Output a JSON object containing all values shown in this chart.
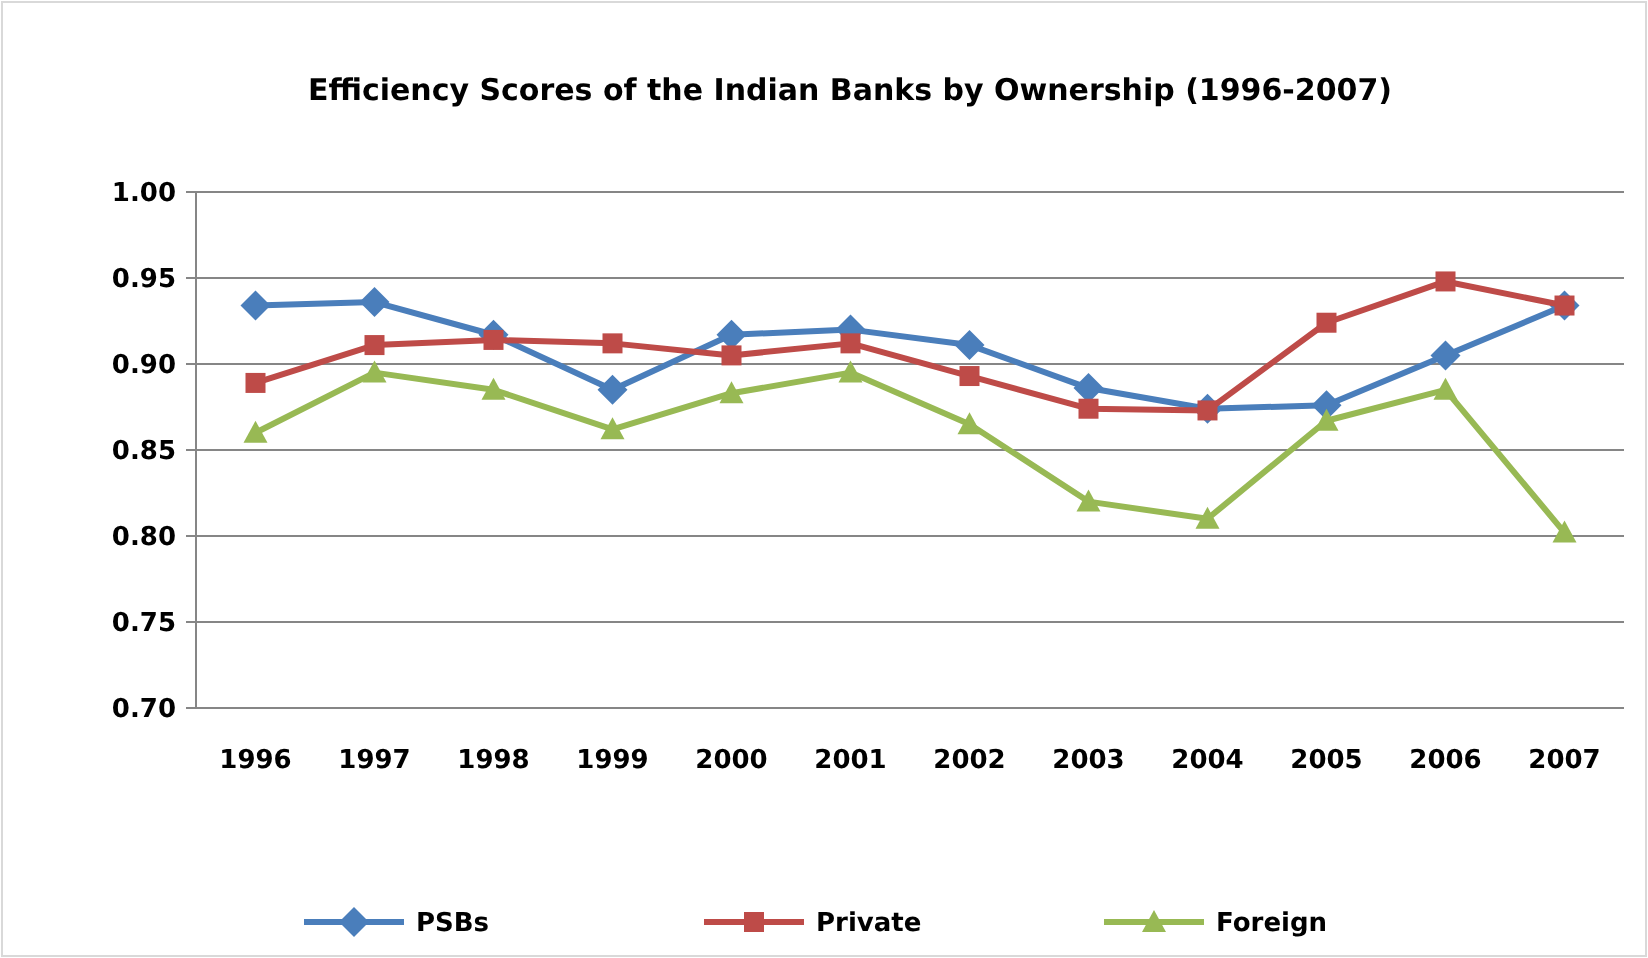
{
  "chart_data": {
    "type": "line",
    "title": "Efficiency  Scores of the Indian Banks  by Ownership (1996-2007)",
    "categories": [
      "1996",
      "1997",
      "1998",
      "1999",
      "2000",
      "2001",
      "2002",
      "2003",
      "2004",
      "2005",
      "2006",
      "2007"
    ],
    "series": [
      {
        "name": "PSBs",
        "color": "#4a7ebb",
        "marker": "diamond",
        "values": [
          0.934,
          0.936,
          0.917,
          0.885,
          0.917,
          0.92,
          0.911,
          0.886,
          0.874,
          0.876,
          0.905,
          0.934
        ]
      },
      {
        "name": "Private",
        "color": "#be4b48",
        "marker": "square",
        "values": [
          0.889,
          0.911,
          0.914,
          0.912,
          0.905,
          0.912,
          0.893,
          0.874,
          0.873,
          0.924,
          0.948,
          0.934
        ]
      },
      {
        "name": "Foreign",
        "color": "#98b954",
        "marker": "triangle",
        "values": [
          0.86,
          0.895,
          0.885,
          0.862,
          0.883,
          0.895,
          0.865,
          0.82,
          0.81,
          0.867,
          0.885,
          0.802
        ]
      }
    ],
    "ylim": [
      0.7,
      1.0
    ],
    "yticks": [
      {
        "value": 0.7,
        "label": "0.70"
      },
      {
        "value": 0.75,
        "label": "0.75"
      },
      {
        "value": 0.8,
        "label": "0.80"
      },
      {
        "value": 0.85,
        "label": "0.85"
      },
      {
        "value": 0.9,
        "label": "0.90"
      },
      {
        "value": 0.95,
        "label": "0.95"
      },
      {
        "value": 1.0,
        "label": "1.00"
      }
    ],
    "grid": "y",
    "legend": "bottom",
    "line_style": "solid"
  }
}
